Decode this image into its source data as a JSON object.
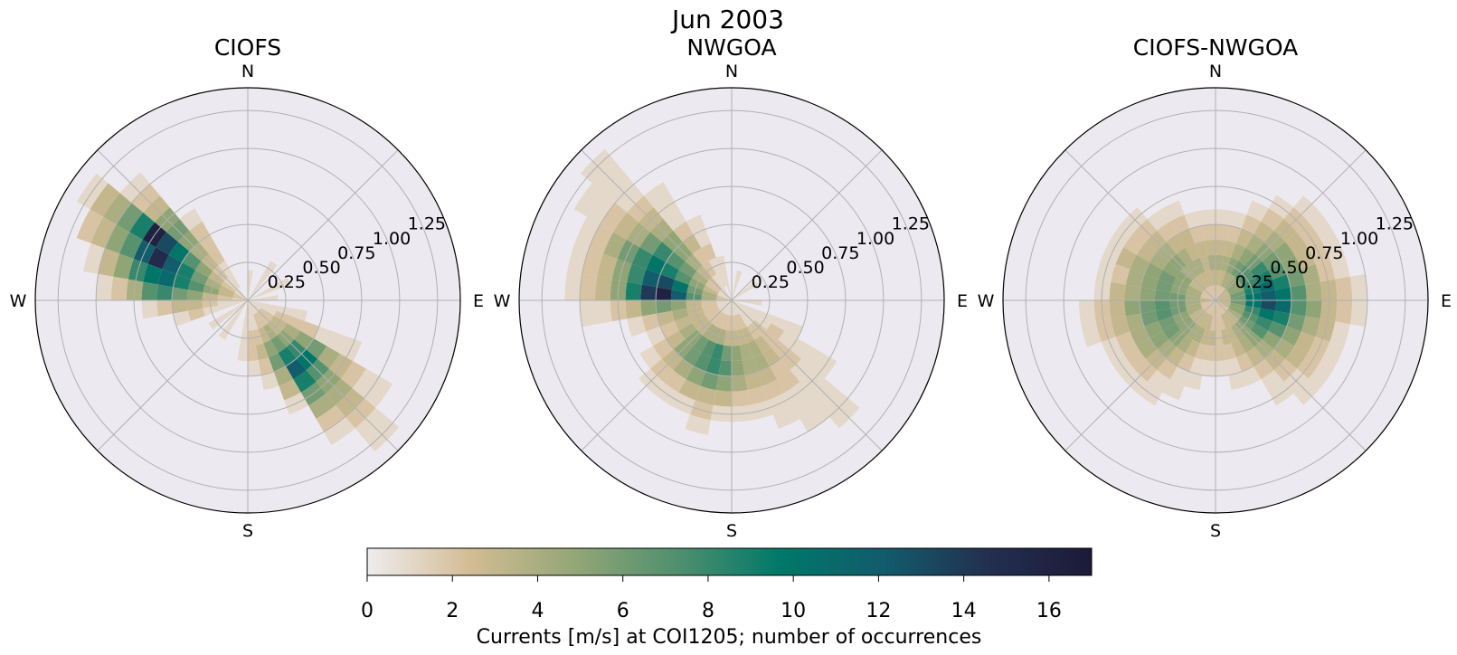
{
  "figure": {
    "title": "Jun 2003"
  },
  "colorbar": {
    "label": "Currents [m/s] at COI1205; number of occurrences",
    "ticks": [
      0,
      2,
      4,
      6,
      8,
      10,
      12,
      14,
      16
    ],
    "vmin": 0,
    "vmax": 17,
    "colormap": [
      "#efecef",
      "#d3bc94",
      "#94a677",
      "#4f8f6e",
      "#007869",
      "#125b6c",
      "#232f4f",
      "#1c1a38"
    ]
  },
  "chart_data": [
    {
      "type": "polar-histogram",
      "title": "CIOFS",
      "direction_labels": [
        "N",
        "E",
        "S",
        "W"
      ],
      "radial_ticks": [
        "0.25",
        "0.50",
        "0.75",
        "1.00",
        "1.25"
      ],
      "rlim": [
        0,
        1.4
      ],
      "speed_bin_width": 0.1,
      "direction_bin_width_deg": 10,
      "grid": true,
      "background": "#eceaf0",
      "wedges": [
        {
          "dir": 305,
          "counts": [
            1,
            2,
            3,
            5,
            7,
            10,
            13,
            16,
            9,
            6,
            4,
            3,
            1
          ]
        },
        {
          "dir": 295,
          "counts": [
            2,
            3,
            4,
            6,
            9,
            12,
            15,
            12,
            7,
            5,
            3,
            2
          ]
        },
        {
          "dir": 285,
          "counts": [
            2,
            3,
            5,
            7,
            9,
            11,
            10,
            8,
            5,
            3,
            1
          ]
        },
        {
          "dir": 275,
          "counts": [
            1,
            2,
            3,
            5,
            6,
            8,
            7,
            4,
            2,
            1
          ]
        },
        {
          "dir": 315,
          "counts": [
            1,
            1,
            2,
            3,
            4,
            5,
            6,
            5,
            3,
            2,
            1
          ]
        },
        {
          "dir": 325,
          "counts": [
            0,
            1,
            1,
            2,
            2,
            2,
            1
          ]
        },
        {
          "dir": 265,
          "counts": [
            1,
            1,
            2,
            3,
            3,
            2,
            1
          ]
        },
        {
          "dir": 255,
          "counts": [
            1,
            1,
            1,
            2,
            1
          ]
        },
        {
          "dir": 135,
          "counts": [
            1,
            2,
            3,
            5,
            8,
            10,
            7,
            5,
            4,
            3,
            2,
            1,
            1
          ]
        },
        {
          "dir": 145,
          "counts": [
            1,
            2,
            4,
            6,
            9,
            12,
            9,
            6,
            4,
            2,
            1
          ]
        },
        {
          "dir": 125,
          "counts": [
            1,
            2,
            3,
            4,
            5,
            6,
            4,
            3,
            2,
            1,
            1
          ]
        },
        {
          "dir": 155,
          "counts": [
            1,
            2,
            3,
            5,
            6,
            4,
            3,
            1
          ]
        },
        {
          "dir": 115,
          "counts": [
            1,
            1,
            2,
            2,
            2,
            1,
            1,
            1
          ]
        },
        {
          "dir": 165,
          "counts": [
            1,
            1,
            2,
            3,
            2,
            1
          ]
        },
        {
          "dir": 175,
          "counts": [
            1,
            1,
            2,
            2,
            1
          ]
        },
        {
          "dir": 185,
          "counts": [
            1,
            1,
            1,
            1
          ]
        },
        {
          "dir": 105,
          "counts": [
            1,
            1,
            1,
            1
          ]
        },
        {
          "dir": 5,
          "counts": [
            1,
            1
          ]
        },
        {
          "dir": 35,
          "counts": [
            1,
            1,
            1
          ]
        },
        {
          "dir": 65,
          "counts": [
            1,
            1,
            1
          ]
        },
        {
          "dir": 85,
          "counts": [
            1,
            1
          ]
        },
        {
          "dir": 215,
          "counts": [
            1,
            1,
            1
          ]
        },
        {
          "dir": 235,
          "counts": [
            1,
            1,
            1
          ]
        }
      ]
    },
    {
      "type": "polar-histogram",
      "title": "NWGOA",
      "direction_labels": [
        "N",
        "E",
        "S",
        "W"
      ],
      "radial_ticks": [
        "0.25",
        "0.50",
        "0.75",
        "1.00",
        "1.25"
      ],
      "rlim": [
        0,
        1.4
      ],
      "speed_bin_width": 0.1,
      "direction_bin_width_deg": 10,
      "grid": true,
      "background": "#eceaf0",
      "wedges": [
        {
          "dir": 275,
          "counts": [
            2,
            4,
            7,
            12,
            16,
            14,
            9,
            5,
            3,
            2,
            1
          ]
        },
        {
          "dir": 285,
          "counts": [
            2,
            4,
            6,
            10,
            13,
            12,
            8,
            5,
            3,
            2,
            1
          ]
        },
        {
          "dir": 295,
          "counts": [
            1,
            3,
            5,
            7,
            9,
            10,
            8,
            6,
            4,
            2,
            1
          ]
        },
        {
          "dir": 305,
          "counts": [
            1,
            2,
            4,
            6,
            7,
            8,
            6,
            4,
            3,
            2,
            1,
            1
          ]
        },
        {
          "dir": 315,
          "counts": [
            1,
            2,
            3,
            4,
            5,
            5,
            4,
            3,
            2,
            1,
            1,
            1,
            1
          ]
        },
        {
          "dir": 265,
          "counts": [
            1,
            2,
            3,
            5,
            6,
            5,
            3,
            2,
            1,
            1
          ]
        },
        {
          "dir": 255,
          "counts": [
            1,
            2,
            3,
            4,
            3,
            2,
            1
          ]
        },
        {
          "dir": 325,
          "counts": [
            1,
            1,
            2,
            2,
            3,
            2,
            1,
            1,
            1
          ]
        },
        {
          "dir": 335,
          "counts": [
            0,
            1,
            1,
            2,
            1,
            1
          ]
        },
        {
          "dir": 245,
          "counts": [
            1,
            2,
            3,
            3,
            2,
            1
          ]
        },
        {
          "dir": 235,
          "counts": [
            1,
            2,
            3,
            4,
            3,
            2,
            1
          ]
        },
        {
          "dir": 225,
          "counts": [
            1,
            2,
            3,
            5,
            5,
            3,
            2,
            1
          ]
        },
        {
          "dir": 215,
          "counts": [
            1,
            2,
            4,
            6,
            6,
            4,
            2,
            1
          ]
        },
        {
          "dir": 205,
          "counts": [
            1,
            2,
            4,
            7,
            7,
            5,
            3,
            1
          ]
        },
        {
          "dir": 195,
          "counts": [
            1,
            2,
            4,
            8,
            8,
            6,
            3,
            2,
            1
          ]
        },
        {
          "dir": 185,
          "counts": [
            1,
            2,
            3,
            6,
            7,
            5,
            3,
            1
          ]
        },
        {
          "dir": 175,
          "counts": [
            1,
            2,
            3,
            5,
            5,
            4,
            2,
            1
          ]
        },
        {
          "dir": 165,
          "counts": [
            1,
            2,
            3,
            4,
            4,
            3,
            2,
            1
          ]
        },
        {
          "dir": 155,
          "counts": [
            1,
            2,
            3,
            4,
            4,
            3,
            2,
            1,
            1
          ]
        },
        {
          "dir": 145,
          "counts": [
            1,
            1,
            2,
            3,
            3,
            2,
            2,
            1,
            1,
            1
          ]
        },
        {
          "dir": 135,
          "counts": [
            1,
            1,
            2,
            2,
            2,
            2,
            1,
            1,
            1,
            1,
            1
          ]
        },
        {
          "dir": 125,
          "counts": [
            1,
            1,
            1,
            2,
            1,
            1,
            1,
            1
          ]
        },
        {
          "dir": 115,
          "counts": [
            1,
            1,
            1,
            1,
            1
          ]
        },
        {
          "dir": 345,
          "counts": [
            1,
            1,
            1
          ]
        },
        {
          "dir": 15,
          "counts": [
            1,
            1
          ]
        },
        {
          "dir": 55,
          "counts": [
            1,
            1
          ]
        },
        {
          "dir": 95,
          "counts": [
            1,
            1
          ]
        }
      ]
    },
    {
      "type": "polar-histogram",
      "title": "CIOFS-NWGOA",
      "direction_labels": [
        "N",
        "E",
        "S",
        "W"
      ],
      "radial_ticks": [
        "0.25",
        "0.50",
        "0.75",
        "1.00",
        "1.25"
      ],
      "rlim": [
        0,
        1.4
      ],
      "speed_bin_width": 0.1,
      "direction_bin_width_deg": 10,
      "grid": true,
      "background": "#eceaf0",
      "wedges": [
        {
          "dir": 5,
          "counts": [
            2,
            3,
            4,
            3,
            2,
            1
          ]
        },
        {
          "dir": 15,
          "counts": [
            2,
            3,
            4,
            3,
            2,
            1
          ]
        },
        {
          "dir": 25,
          "counts": [
            2,
            4,
            5,
            4,
            3,
            2,
            1
          ]
        },
        {
          "dir": 35,
          "counts": [
            2,
            4,
            6,
            5,
            4,
            3,
            2,
            1
          ]
        },
        {
          "dir": 45,
          "counts": [
            3,
            5,
            7,
            6,
            5,
            4,
            3,
            2,
            1
          ]
        },
        {
          "dir": 55,
          "counts": [
            3,
            5,
            7,
            8,
            6,
            5,
            3,
            2,
            1
          ]
        },
        {
          "dir": 65,
          "counts": [
            3,
            5,
            8,
            9,
            7,
            5,
            3,
            2,
            1
          ]
        },
        {
          "dir": 75,
          "counts": [
            3,
            6,
            9,
            11,
            9,
            6,
            4,
            2,
            1
          ]
        },
        {
          "dir": 85,
          "counts": [
            3,
            6,
            10,
            12,
            10,
            7,
            4,
            3,
            2,
            1
          ]
        },
        {
          "dir": 95,
          "counts": [
            3,
            6,
            10,
            13,
            11,
            7,
            5,
            3,
            2,
            1
          ]
        },
        {
          "dir": 105,
          "counts": [
            3,
            5,
            8,
            10,
            9,
            6,
            4,
            3,
            1
          ]
        },
        {
          "dir": 115,
          "counts": [
            3,
            5,
            7,
            8,
            7,
            5,
            3,
            2,
            1
          ]
        },
        {
          "dir": 125,
          "counts": [
            2,
            4,
            6,
            7,
            5,
            4,
            3,
            2,
            1
          ]
        },
        {
          "dir": 135,
          "counts": [
            2,
            3,
            5,
            5,
            4,
            3,
            2,
            1,
            1
          ]
        },
        {
          "dir": 145,
          "counts": [
            2,
            3,
            4,
            4,
            3,
            2,
            1,
            1
          ]
        },
        {
          "dir": 155,
          "counts": [
            2,
            3,
            3,
            3,
            2,
            1
          ]
        },
        {
          "dir": 165,
          "counts": [
            2,
            2,
            3,
            2,
            1,
            1
          ]
        },
        {
          "dir": 175,
          "counts": [
            2,
            2,
            2,
            2,
            1
          ]
        },
        {
          "dir": 185,
          "counts": [
            2,
            2,
            3,
            2,
            1
          ]
        },
        {
          "dir": 195,
          "counts": [
            2,
            3,
            3,
            2,
            1,
            1
          ]
        },
        {
          "dir": 205,
          "counts": [
            2,
            3,
            4,
            3,
            2,
            1,
            1
          ]
        },
        {
          "dir": 215,
          "counts": [
            2,
            3,
            4,
            4,
            3,
            2,
            1,
            1
          ]
        },
        {
          "dir": 225,
          "counts": [
            2,
            3,
            5,
            5,
            4,
            3,
            2,
            1
          ]
        },
        {
          "dir": 235,
          "counts": [
            2,
            3,
            5,
            6,
            5,
            4,
            2,
            1
          ]
        },
        {
          "dir": 245,
          "counts": [
            2,
            4,
            5,
            6,
            5,
            4,
            2,
            1
          ]
        },
        {
          "dir": 255,
          "counts": [
            2,
            4,
            6,
            7,
            6,
            4,
            3,
            2,
            1
          ]
        },
        {
          "dir": 265,
          "counts": [
            3,
            4,
            6,
            7,
            6,
            5,
            3,
            2,
            1
          ]
        },
        {
          "dir": 275,
          "counts": [
            3,
            4,
            6,
            6,
            5,
            4,
            3,
            1
          ]
        },
        {
          "dir": 285,
          "counts": [
            2,
            4,
            5,
            6,
            5,
            4,
            2,
            1
          ]
        },
        {
          "dir": 295,
          "counts": [
            2,
            4,
            5,
            6,
            5,
            4,
            3,
            1
          ]
        },
        {
          "dir": 305,
          "counts": [
            2,
            3,
            5,
            5,
            4,
            3,
            2,
            1
          ]
        },
        {
          "dir": 315,
          "counts": [
            2,
            3,
            4,
            5,
            4,
            3,
            2,
            1
          ]
        },
        {
          "dir": 325,
          "counts": [
            2,
            3,
            4,
            4,
            3,
            2,
            1
          ]
        },
        {
          "dir": 335,
          "counts": [
            2,
            3,
            4,
            3,
            3,
            2,
            1
          ]
        },
        {
          "dir": 345,
          "counts": [
            2,
            3,
            3,
            3,
            2,
            1
          ]
        },
        {
          "dir": 355,
          "counts": [
            2,
            3,
            4,
            3,
            2,
            1
          ]
        }
      ]
    }
  ]
}
